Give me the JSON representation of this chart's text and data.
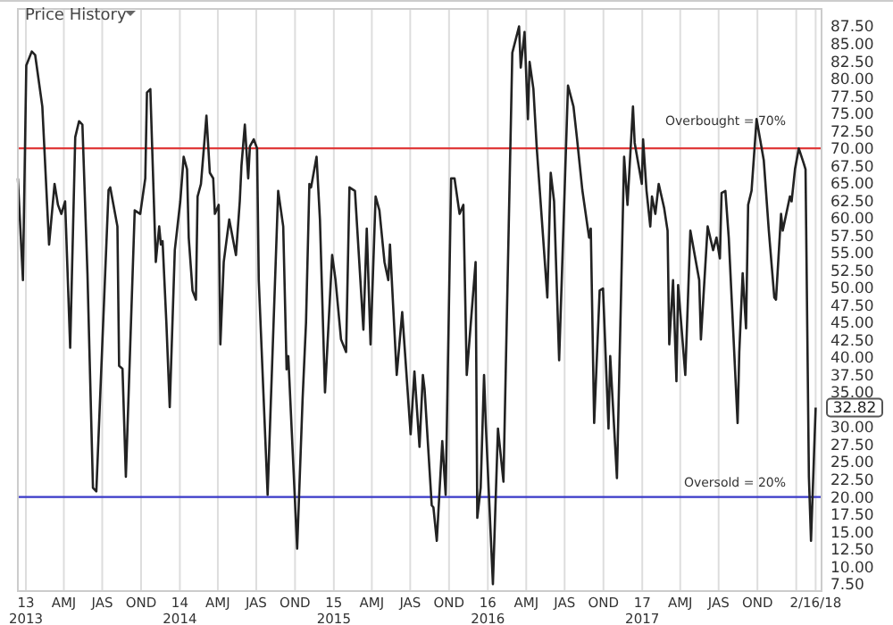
{
  "chart_data": {
    "type": "line",
    "title": "Price History",
    "x": [
      "2012-12-13",
      "2012-12-25",
      "2013-01-02",
      "2013-01-15",
      "2013-01-23",
      "2013-02-09",
      "2013-02-25",
      "2013-03-10",
      "2013-03-18",
      "2013-03-26",
      "2013-04-04",
      "2013-04-16",
      "2013-04-28",
      "2013-05-07",
      "2013-05-15",
      "2013-05-27",
      "2013-06-09",
      "2013-06-17",
      "2013-07-16",
      "2013-07-20",
      "2013-08-06",
      "2013-08-10",
      "2013-08-18",
      "2013-08-26",
      "2013-09-16",
      "2013-09-29",
      "2013-10-11",
      "2013-10-15",
      "2013-10-23",
      "2013-10-27",
      "2013-11-05",
      "2013-11-13",
      "2013-11-17",
      "2013-11-21",
      "2013-11-30",
      "2013-12-08",
      "2013-12-20",
      "2014-01-02",
      "2014-01-10",
      "2014-01-18",
      "2014-01-22",
      "2014-01-31",
      "2014-02-08",
      "2014-02-12",
      "2014-02-20",
      "2014-03-01",
      "2014-03-05",
      "2014-03-13",
      "2014-03-21",
      "2014-03-25",
      "2014-04-03",
      "2014-04-07",
      "2014-04-15",
      "2014-04-28",
      "2014-05-14",
      "2014-05-23",
      "2014-05-27",
      "2014-06-04",
      "2014-06-12",
      "2014-06-16",
      "2014-06-25",
      "2014-07-03",
      "2014-07-07",
      "2014-07-28",
      "2014-08-22",
      "2014-09-03",
      "2014-09-11",
      "2014-09-15",
      "2014-10-06",
      "2014-10-19",
      "2014-10-27",
      "2014-11-04",
      "2014-11-08",
      "2014-11-21",
      "2014-11-29",
      "2014-12-11",
      "2014-12-28",
      "2015-01-05",
      "2015-01-18",
      "2015-01-30",
      "2015-02-07",
      "2015-02-20",
      "2015-03-12",
      "2015-03-20",
      "2015-03-29",
      "2015-04-10",
      "2015-04-19",
      "2015-05-01",
      "2015-05-10",
      "2015-05-14",
      "2015-05-30",
      "2015-06-12",
      "2015-07-02",
      "2015-07-11",
      "2015-07-23",
      "2015-07-31",
      "2015-08-04",
      "2015-08-21",
      "2015-08-25",
      "2015-09-02",
      "2015-09-15",
      "2015-09-23",
      "2015-10-06",
      "2015-10-14",
      "2015-10-26",
      "2015-11-04",
      "2015-11-12",
      "2015-12-03",
      "2015-12-07",
      "2015-12-15",
      "2015-12-23",
      "2015-12-27",
      "2016-01-13",
      "2016-01-25",
      "2016-02-07",
      "2016-02-28",
      "2016-03-15",
      "2016-03-19",
      "2016-03-28",
      "2016-04-05",
      "2016-04-09",
      "2016-04-18",
      "2016-04-26",
      "2016-05-08",
      "2016-05-21",
      "2016-05-29",
      "2016-06-06",
      "2016-06-18",
      "2016-07-09",
      "2016-07-22",
      "2016-07-30",
      "2016-08-12",
      "2016-08-28",
      "2016-09-01",
      "2016-09-09",
      "2016-09-22",
      "2016-09-30",
      "2016-10-13",
      "2016-10-17",
      "2016-11-02",
      "2016-11-19",
      "2016-11-27",
      "2016-12-10",
      "2016-12-14",
      "2016-12-31",
      "2017-01-03",
      "2017-01-11",
      "2017-01-20",
      "2017-01-24",
      "2017-02-01",
      "2017-02-09",
      "2017-02-22",
      "2017-03-02",
      "2017-03-06",
      "2017-03-15",
      "2017-03-23",
      "2017-03-27",
      "2017-04-13",
      "2017-04-25",
      "2017-05-16",
      "2017-05-20",
      "2017-06-05",
      "2017-06-18",
      "2017-06-26",
      "2017-07-04",
      "2017-07-08",
      "2017-07-17",
      "2017-07-25",
      "2017-08-15",
      "2017-08-19",
      "2017-08-27",
      "2017-09-04",
      "2017-09-09",
      "2017-09-17",
      "2017-09-29",
      "2017-10-16",
      "2017-10-28",
      "2017-11-10",
      "2017-11-14",
      "2017-11-26",
      "2017-11-30",
      "2017-12-17",
      "2017-12-21",
      "2017-12-29",
      "2018-01-07",
      "2018-01-19",
      "2018-01-23",
      "2018-01-31",
      "2018-02-05",
      "2018-02-16"
    ],
    "series": [
      {
        "color": "#222222",
        "values": [
          65.7,
          51.1,
          81.9,
          83.9,
          83.4,
          76,
          56.2,
          64.9,
          61.9,
          60.6,
          62.4,
          41.4,
          71.6,
          73.9,
          73.4,
          52,
          21.3,
          20.8,
          64,
          64.4,
          58.8,
          38.8,
          38.4,
          22.9,
          61.1,
          60.6,
          65.7,
          78,
          78.5,
          70.8,
          53.7,
          58.8,
          56.2,
          56.7,
          45,
          32.9,
          55.4,
          62.4,
          68.8,
          67,
          57.2,
          49.6,
          48.3,
          63.1,
          64.9,
          71.6,
          74.7,
          66.5,
          65.7,
          60.6,
          61.9,
          41.9,
          53.7,
          59.8,
          54.7,
          62.4,
          67.5,
          73.4,
          65.7,
          70.3,
          71.3,
          70,
          51.1,
          20.3,
          63.9,
          58.8,
          38.3,
          40.2,
          12.6,
          34.2,
          45,
          64.9,
          64.4,
          68.8,
          59.8,
          35,
          54.7,
          51.1,
          42.6,
          40.8,
          64.4,
          63.9,
          44,
          58.5,
          41.9,
          63.1,
          61.1,
          53.7,
          51.1,
          56.2,
          37.5,
          46.5,
          29,
          38,
          27.2,
          37.5,
          35.5,
          18.8,
          18.5,
          13.7,
          28,
          20.3,
          65.7,
          65.7,
          60.6,
          61.9,
          37.5,
          53.7,
          17,
          21.3,
          37.5,
          30.6,
          7.5,
          29.8,
          22.2,
          83.7,
          87.5,
          81.6,
          86.7,
          74.2,
          82.4,
          78.5,
          70,
          59.8,
          48.6,
          66.5,
          62.4,
          39.6,
          79,
          76,
          71.6,
          64,
          57.2,
          58.5,
          30.6,
          49.6,
          49.9,
          29.8,
          40.2,
          22.7,
          68.8,
          61.9,
          76,
          70.8,
          64.9,
          71.3,
          64,
          58.8,
          63.1,
          60.6,
          64.9,
          61.4,
          58.2,
          41.9,
          51.1,
          36.6,
          50.4,
          37.5,
          58.2,
          51.1,
          42.6,
          58.8,
          55.4,
          57.2,
          54.2,
          63.6,
          63.9,
          57.2,
          30.6,
          40.8,
          52.1,
          44.2,
          61.9,
          63.9,
          74.2,
          68.3,
          58.2,
          48.6,
          48.3,
          60.6,
          58.2,
          63.1,
          62.4,
          67,
          70,
          67.8,
          67,
          22.9,
          13.7,
          32.82
        ]
      }
    ],
    "xlim": [
      "2012-12-13",
      "2018-03-02"
    ],
    "xticks": [
      {
        "value": "2013-01-01",
        "label": "13\n2013"
      },
      {
        "value": "2013-04-01",
        "label": "AMJ"
      },
      {
        "value": "2013-07-01",
        "label": "JAS"
      },
      {
        "value": "2013-10-01",
        "label": "OND"
      },
      {
        "value": "2014-01-01",
        "label": "14\n2014"
      },
      {
        "value": "2014-04-01",
        "label": "AMJ"
      },
      {
        "value": "2014-07-01",
        "label": "JAS"
      },
      {
        "value": "2014-10-01",
        "label": "OND"
      },
      {
        "value": "2015-01-01",
        "label": "15\n2015"
      },
      {
        "value": "2015-04-01",
        "label": "AMJ"
      },
      {
        "value": "2015-07-01",
        "label": "JAS"
      },
      {
        "value": "2015-10-01",
        "label": "OND"
      },
      {
        "value": "2016-01-01",
        "label": "16\n2016"
      },
      {
        "value": "2016-04-01",
        "label": "AMJ"
      },
      {
        "value": "2016-07-01",
        "label": "JAS"
      },
      {
        "value": "2016-10-01",
        "label": "OND"
      },
      {
        "value": "2017-01-01",
        "label": "17\n2017"
      },
      {
        "value": "2017-04-01",
        "label": "AMJ"
      },
      {
        "value": "2017-07-01",
        "label": "JAS"
      },
      {
        "value": "2017-10-01",
        "label": "OND"
      },
      {
        "value": "2018-01-01",
        "label": null
      },
      {
        "value": "2018-02-16",
        "label": "2/16/18"
      }
    ],
    "ylim": [
      6.5,
      90
    ],
    "yticks": [
      {
        "value": 7.5,
        "label": "7.50"
      },
      {
        "value": 10,
        "label": "10.00"
      },
      {
        "value": 12.5,
        "label": "12.50"
      },
      {
        "value": 15,
        "label": "15.00"
      },
      {
        "value": 17.5,
        "label": "17.50"
      },
      {
        "value": 20,
        "label": "20.00"
      },
      {
        "value": 22.5,
        "label": "22.50"
      },
      {
        "value": 25,
        "label": "25.00"
      },
      {
        "value": 27.5,
        "label": "27.50"
      },
      {
        "value": 30,
        "label": "30.00"
      },
      {
        "value": 35,
        "label": "35.00"
      },
      {
        "value": 37.5,
        "label": "37.50"
      },
      {
        "value": 40,
        "label": "40.00"
      },
      {
        "value": 42.5,
        "label": "42.50"
      },
      {
        "value": 45,
        "label": "45.00"
      },
      {
        "value": 47.5,
        "label": "47.50"
      },
      {
        "value": 50,
        "label": "50.00"
      },
      {
        "value": 52.5,
        "label": "52.50"
      },
      {
        "value": 55,
        "label": "55.00"
      },
      {
        "value": 57.5,
        "label": "57.50"
      },
      {
        "value": 60,
        "label": "60.00"
      },
      {
        "value": 62.5,
        "label": "62.50"
      },
      {
        "value": 65,
        "label": "65.00"
      },
      {
        "value": 67.5,
        "label": "67.50"
      },
      {
        "value": 70,
        "label": "70.00"
      },
      {
        "value": 72.5,
        "label": "72.50"
      },
      {
        "value": 75,
        "label": "75.00"
      },
      {
        "value": 77.5,
        "label": "77.50"
      },
      {
        "value": 80,
        "label": "80.00"
      },
      {
        "value": 82.5,
        "label": "82.50"
      },
      {
        "value": 85,
        "label": "85.00"
      },
      {
        "value": 87.5,
        "label": "87.50"
      }
    ],
    "ref_lines": [
      {
        "axis": "y",
        "value": 70,
        "label": "Overbought = 70%",
        "color": "#e03a3a"
      },
      {
        "axis": "y",
        "value": 20,
        "label": "Oversold = 20%",
        "color": "#3a3ac8"
      }
    ],
    "annotations": [
      {
        "text": "32.82",
        "x": "2018-02-16",
        "y": 32.82
      }
    ],
    "grid": "x",
    "marker": "none",
    "line_style": "solid"
  }
}
